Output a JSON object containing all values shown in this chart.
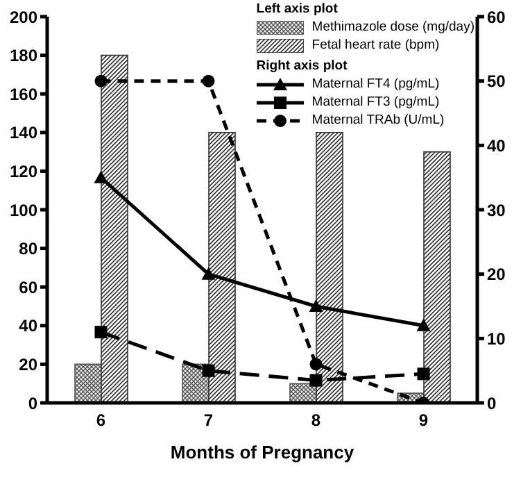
{
  "chart_data": {
    "type": "bar",
    "xlabel": "Months of Pregnancy",
    "categories": [
      "6",
      "7",
      "8",
      "9"
    ],
    "series": [
      {
        "name": "Methimazole dose (mg/day)",
        "color": "#555555",
        "values": [
          20,
          20,
          10,
          5
        ]
      },
      {
        "name": "Fetal heart rate (bpm)",
        "color": "#333333",
        "values": [
          180,
          140,
          140,
          130
        ]
      },
      {
        "name": "Maternal FT4 (pg/mL)",
        "type": "line",
        "axis": "y2",
        "color": "#000000",
        "marker": "triangle",
        "line_style": "solid",
        "values": [
          35,
          20,
          15,
          12
        ]
      },
      {
        "name": "Maternal FT3 (pg/mL)",
        "type": "line",
        "axis": "y2",
        "color": "#000000",
        "marker": "square",
        "line_style": "dashed",
        "values": [
          11,
          5,
          3.5,
          4.5
        ]
      },
      {
        "name": "Maternal TRAb (U/mL)",
        "type": "line",
        "axis": "y2",
        "color": "#000000",
        "marker": "circle",
        "line_style": "dotted",
        "values": [
          50,
          50,
          6,
          0
        ]
      }
    ],
    "annotations": [
      "Left axis plot",
      "Right axis plot"
    ],
    "ylim": [
      0,
      200
    ],
    "yticks": [
      0,
      20,
      40,
      60,
      80,
      100,
      120,
      140,
      160,
      180,
      200
    ],
    "y2lim": [
      0,
      60
    ],
    "y2ticks": [
      0,
      10,
      20,
      30,
      40,
      50,
      60
    ],
    "grid": false,
    "legend": "top right"
  }
}
